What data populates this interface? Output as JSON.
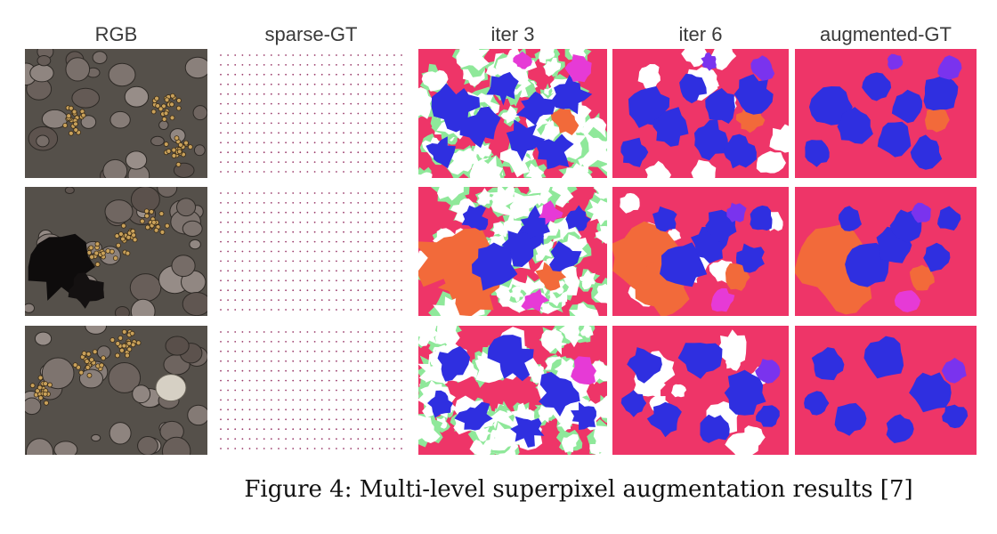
{
  "figure": {
    "columns": [
      "RGB",
      "sparse-GT",
      "iter 3",
      "iter 6",
      "augmented-GT"
    ],
    "rows": 3,
    "caption": "Figure 4: Multi-level superpixel augmentation results [7]",
    "colors": {
      "background_class": "#ee3568",
      "blue_class": "#2f2fe0",
      "orange_class": "#f26a3a",
      "purple_class": "#7a33ee",
      "magenta_class": "#e63ad6",
      "green_boundary": "#8fe89a",
      "unlabeled": "#ffffff",
      "sparse_points": "#9a3b6a",
      "seafloor": "#55504a"
    }
  }
}
